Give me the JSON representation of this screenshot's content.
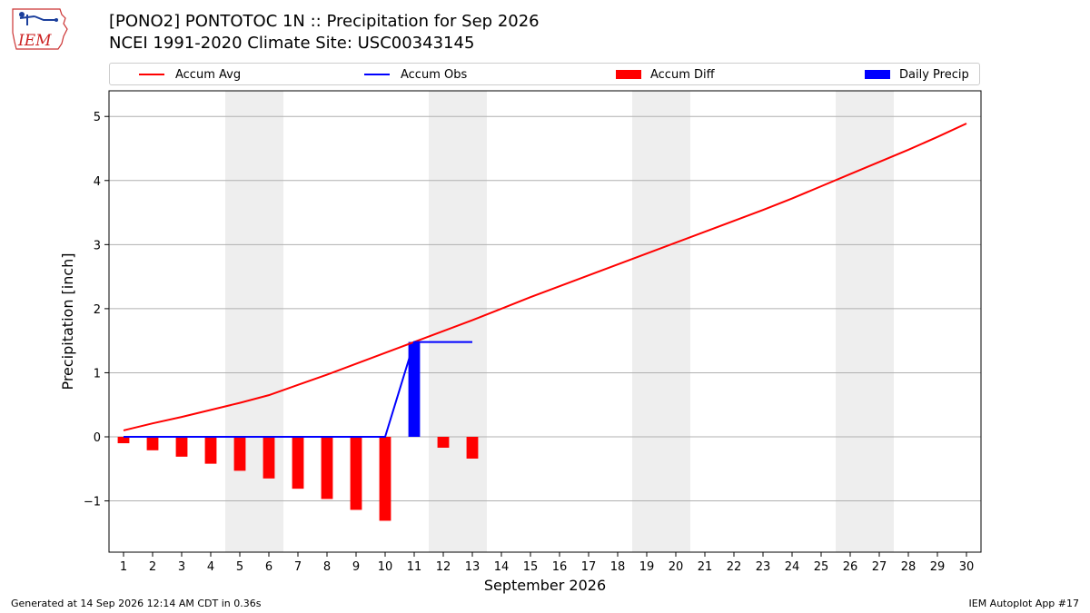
{
  "header": {
    "logo_text": "IEM",
    "title_line1": "[PONO2] PONTOTOC 1N :: Precipitation for Sep 2026",
    "title_line2": "NCEI 1991-2020 Climate Site: USC00343145"
  },
  "legend": {
    "accum_avg": "Accum Avg",
    "accum_obs": "Accum Obs",
    "accum_diff": "Accum Diff",
    "daily_precip": "Daily Precip"
  },
  "colors": {
    "avg": "#ff0000",
    "obs": "#0000ff",
    "diff": "#ff0000",
    "daily": "#0000ff",
    "weekend_shade": "#eeeeee",
    "grid": "#b0b0b0"
  },
  "chart_data": {
    "type": "bar",
    "xlabel": "September 2026",
    "ylabel": "Precipitation [inch]",
    "xlim": [
      0.5,
      30.5
    ],
    "ylim": [
      -1.8,
      5.4
    ],
    "yticks": [
      -1,
      0,
      1,
      2,
      3,
      4,
      5
    ],
    "ytick_labels": [
      "−1",
      "0",
      "1",
      "2",
      "3",
      "4",
      "5"
    ],
    "days": [
      1,
      2,
      3,
      4,
      5,
      6,
      7,
      8,
      9,
      10,
      11,
      12,
      13,
      14,
      15,
      16,
      17,
      18,
      19,
      20,
      21,
      22,
      23,
      24,
      25,
      26,
      27,
      28,
      29,
      30
    ],
    "weekend_days": [
      5,
      6,
      12,
      13,
      19,
      20,
      26,
      27
    ],
    "series": [
      {
        "name": "Accum Avg",
        "kind": "line",
        "x": [
          1,
          2,
          3,
          4,
          5,
          6,
          7,
          8,
          9,
          10,
          11,
          12,
          13,
          14,
          15,
          16,
          17,
          18,
          19,
          20,
          21,
          22,
          23,
          24,
          25,
          26,
          27,
          28,
          29,
          30
        ],
        "values": [
          0.1,
          0.21,
          0.31,
          0.42,
          0.53,
          0.65,
          0.81,
          0.97,
          1.14,
          1.31,
          1.48,
          1.65,
          1.82,
          2.0,
          2.18,
          2.35,
          2.52,
          2.69,
          2.86,
          3.03,
          3.2,
          3.37,
          3.54,
          3.72,
          3.91,
          4.1,
          4.29,
          4.48,
          4.68,
          4.89
        ]
      },
      {
        "name": "Accum Obs",
        "kind": "line",
        "x": [
          1,
          2,
          3,
          4,
          5,
          6,
          7,
          8,
          9,
          10,
          11,
          12,
          13
        ],
        "values": [
          0,
          0,
          0,
          0,
          0,
          0,
          0,
          0,
          0,
          0,
          1.48,
          1.48,
          1.48
        ]
      },
      {
        "name": "Accum Diff",
        "kind": "bar",
        "x": [
          1,
          2,
          3,
          4,
          5,
          6,
          7,
          8,
          9,
          10,
          11,
          12,
          13
        ],
        "values": [
          -0.1,
          -0.21,
          -0.31,
          -0.42,
          -0.53,
          -0.65,
          -0.81,
          -0.97,
          -1.14,
          -1.31,
          0,
          -0.17,
          -0.34
        ]
      },
      {
        "name": "Daily Precip",
        "kind": "bar",
        "x": [
          11
        ],
        "values": [
          1.48
        ]
      }
    ]
  },
  "footer": {
    "left": "Generated at 14 Sep 2026 12:14 AM CDT in 0.36s",
    "right": "IEM Autoplot App #17"
  }
}
